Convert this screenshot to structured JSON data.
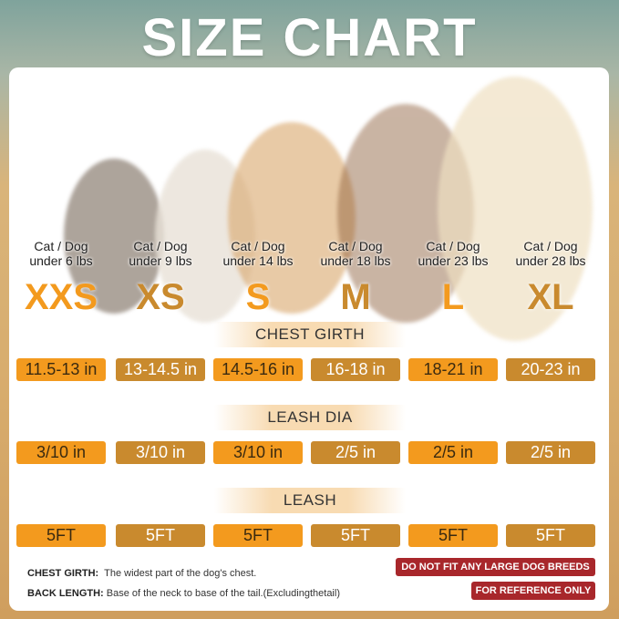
{
  "title": "SIZE CHART",
  "columns": [
    {
      "weight_line1": "Cat / Dog",
      "weight_line2": "under 6 lbs",
      "size": "XXS",
      "chest_girth": "11.5-13 in",
      "leash_dia": "3/10 in",
      "leash": "5FT"
    },
    {
      "weight_line1": "Cat / Dog",
      "weight_line2": "under 9 lbs",
      "size": "XS",
      "chest_girth": "13-14.5 in",
      "leash_dia": "3/10 in",
      "leash": "5FT"
    },
    {
      "weight_line1": "Cat / Dog",
      "weight_line2": "under 14 lbs",
      "size": "S",
      "chest_girth": "14.5-16 in",
      "leash_dia": "3/10 in",
      "leash": "5FT"
    },
    {
      "weight_line1": "Cat / Dog",
      "weight_line2": "under 18 lbs",
      "size": "M",
      "chest_girth": "16-18 in",
      "leash_dia": "2/5 in",
      "leash": "5FT"
    },
    {
      "weight_line1": "Cat / Dog",
      "weight_line2": "under 23 lbs",
      "size": "L",
      "chest_girth": "18-21 in",
      "leash_dia": "2/5 in",
      "leash": "5FT"
    },
    {
      "weight_line1": "Cat / Dog",
      "weight_line2": "under 28 lbs",
      "size": "XL",
      "chest_girth": "20-23 in",
      "leash_dia": "2/5 in",
      "leash": "5FT"
    }
  ],
  "sections": {
    "chest_girth": "CHEST GIRTH",
    "leash_dia": "LEASH DIA",
    "leash": "LEASH"
  },
  "notes": {
    "chest_label": "CHEST GIRTH:",
    "chest_text": "The widest part of the dog's chest.",
    "back_label": "BACK LENGTH:",
    "back_text": "Base of the neck to base of the tail.(Excludingthetail)"
  },
  "badges": {
    "no_large": "DO NOT FIT ANY LARGE DOG BREEDS",
    "reference": "FOR REFERENCE ONLY"
  },
  "colors": {
    "orange": "#F39A1E",
    "brown": "#C98A2E",
    "badge": "#A8272B"
  }
}
